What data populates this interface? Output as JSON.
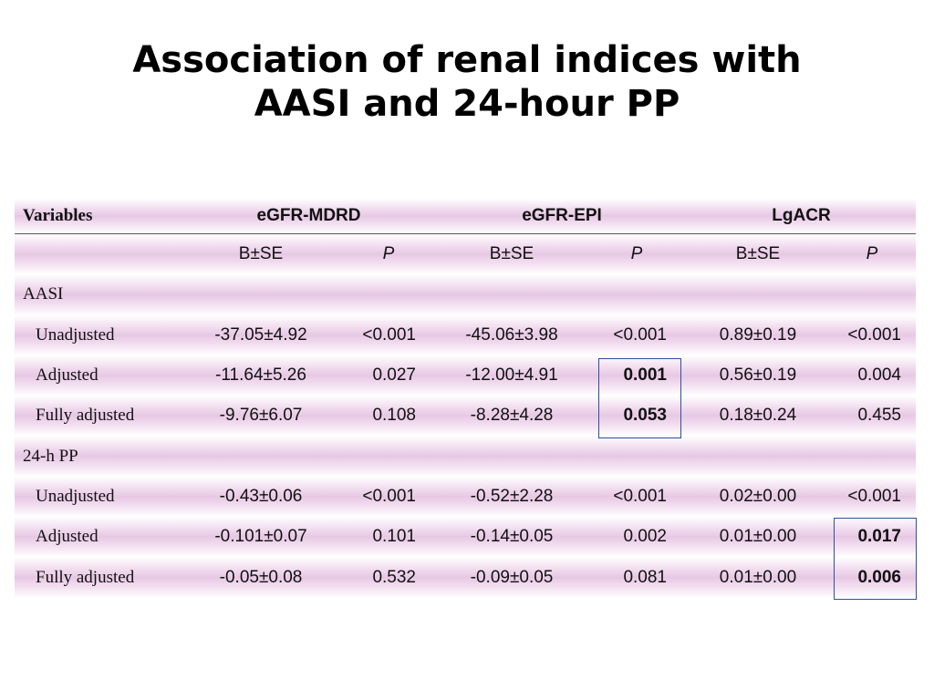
{
  "title": {
    "line1": "Association of renal indices with",
    "line2": "AASI and 24-hour PP"
  },
  "table": {
    "header": {
      "variables": "Variables",
      "groups": [
        "eGFR-MDRD",
        "eGFR-EPI",
        "LgACR"
      ]
    },
    "subheader": [
      "B±SE",
      "P",
      "B±SE",
      "P",
      "B±SE",
      "P"
    ],
    "sections": [
      {
        "label": "AASI",
        "rows": [
          {
            "label": "Unadjusted",
            "cells": [
              "-37.05±4.92",
              "<0.001",
              "-45.06±3.98",
              "<0.001",
              "0.89±0.19",
              "<0.001"
            ]
          },
          {
            "label": "Adjusted",
            "cells": [
              "-11.64±5.26",
              "0.027",
              "-12.00±4.91",
              "0.001",
              "0.56±0.19",
              "0.004"
            ]
          },
          {
            "label": "Fully adjusted",
            "cells": [
              "-9.76±6.07",
              "0.108",
              "-8.28±4.28",
              "0.053",
              "0.18±0.24",
              "0.455"
            ]
          }
        ]
      },
      {
        "label": "24-h PP",
        "rows": [
          {
            "label": "Unadjusted",
            "cells": [
              "-0.43±0.06",
              "<0.001",
              "-0.52±2.28",
              "<0.001",
              "0.02±0.00",
              "<0.001"
            ]
          },
          {
            "label": "Adjusted",
            "cells": [
              "-0.101±0.07",
              "0.101",
              "-0.14±0.05",
              "0.002",
              "0.01±0.00",
              "0.017"
            ]
          },
          {
            "label": "Fully adjusted",
            "cells": [
              "-0.05±0.08",
              "0.532",
              "-0.09±0.05",
              "0.081",
              "0.01±0.00",
              "0.006"
            ]
          }
        ]
      }
    ]
  },
  "colors": {
    "row_band": "#e7c8e4",
    "highlight_border": "#2d4f9e"
  }
}
